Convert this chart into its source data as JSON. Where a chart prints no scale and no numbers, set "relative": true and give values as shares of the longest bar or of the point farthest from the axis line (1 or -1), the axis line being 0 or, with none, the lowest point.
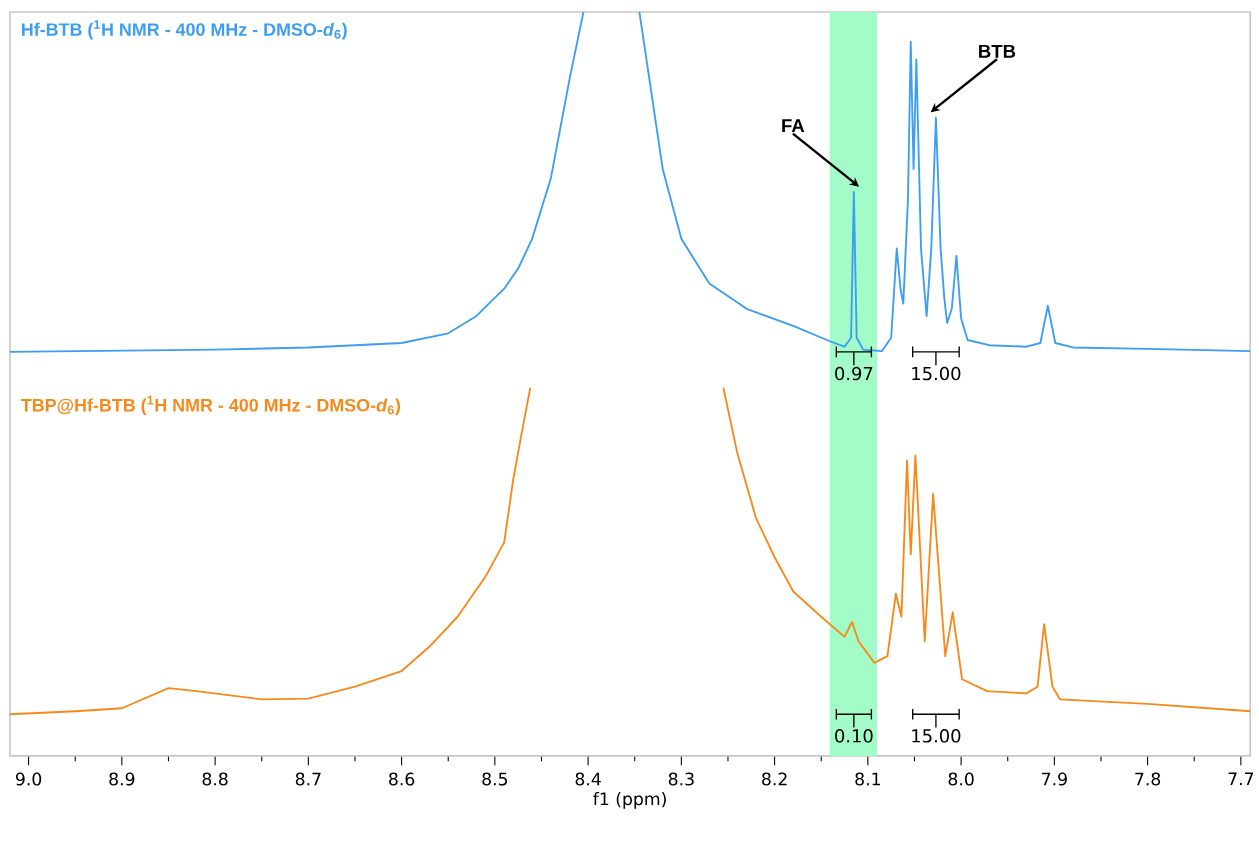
{
  "chart_data": {
    "type": "line",
    "relative": true,
    "xlabel": "f1 (ppm)",
    "xlim": [
      9.02,
      7.69
    ],
    "xticks": [
      {
        "value": 9,
        "label": "9.0"
      },
      8.9,
      8.8,
      8.7,
      8.6,
      8.5,
      8.4,
      8.3,
      8.2,
      8.1,
      {
        "value": 8,
        "label": "8.0"
      },
      7.9,
      7.8,
      7.7
    ],
    "series": [
      {
        "name": "Hf-BTB ($^{1}$H NMR - 400 MHz - DMSO-*d*$_{6}$)",
        "color": "#3c9ef2",
        "x": [
          9.02,
          8.8,
          8.7,
          8.6,
          8.55,
          8.52,
          8.49,
          8.475,
          8.46,
          8.44,
          8.42,
          8.405,
          8.375,
          8.345,
          8.32,
          8.3,
          8.27,
          8.23,
          8.18,
          8.14,
          8.125,
          8.118,
          8.115,
          8.112,
          8.105,
          8.085,
          8.075,
          8.069,
          8.065,
          8.062,
          8.057,
          8.054,
          8.051,
          8.048,
          8.043,
          8.037,
          8.032,
          8.027,
          8.022,
          8.018,
          8.015,
          8.01,
          8.005,
          8.0,
          7.993,
          7.97,
          7.93,
          7.915,
          7.907,
          7.899,
          7.88,
          7.8,
          7.69
        ],
        "values": [
          0.543,
          0.546,
          0.549,
          0.555,
          0.568,
          0.591,
          0.628,
          0.655,
          0.695,
          0.776,
          0.909,
          1,
          null,
          1,
          0.789,
          0.695,
          0.635,
          0.601,
          0.578,
          0.557,
          0.55,
          0.562,
          0.758,
          0.562,
          0.546,
          0.544,
          0.562,
          0.682,
          0.628,
          0.608,
          0.748,
          0.96,
          0.789,
          0.936,
          0.682,
          0.591,
          0.682,
          0.858,
          0.682,
          0.615,
          0.582,
          0.601,
          0.672,
          0.588,
          0.559,
          0.552,
          0.55,
          0.555,
          0.605,
          0.555,
          0.549,
          0.547,
          0.544
        ]
      },
      {
        "name": "TBP@Hf-BTB ($^{1}$H NMR - 400 MHz - DMSO-*d*$_{6}$)",
        "color": "#f7891a",
        "x": [
          9.02,
          8.95,
          8.9,
          8.85,
          8.82,
          8.75,
          8.7,
          8.65,
          8.6,
          8.57,
          8.54,
          8.51,
          8.49,
          8.48,
          8.47,
          8.462,
          8.36,
          8.255,
          8.24,
          8.22,
          8.2,
          8.18,
          8.15,
          8.125,
          8.117,
          8.11,
          8.093,
          8.079,
          8.07,
          8.064,
          8.058,
          8.054,
          8.049,
          8.039,
          8.03,
          8.017,
          8.009,
          7.999,
          7.972,
          7.93,
          7.918,
          7.911,
          7.902,
          7.894,
          7.8,
          7.69
        ],
        "values": [
          0.056,
          0.06,
          0.064,
          0.091,
          0.087,
          0.076,
          0.077,
          0.093,
          0.114,
          0.147,
          0.187,
          0.241,
          0.287,
          0.374,
          0.442,
          0.495,
          null,
          0.495,
          0.407,
          0.32,
          0.267,
          0.221,
          0.187,
          0.16,
          0.18,
          0.154,
          0.125,
          0.134,
          0.218,
          0.187,
          0.397,
          0.271,
          0.404,
          0.154,
          0.352,
          0.134,
          0.193,
          0.103,
          0.087,
          0.084,
          0.093,
          0.177,
          0.093,
          0.076,
          0.07,
          0.06
        ]
      }
    ],
    "bands": [
      {
        "axis": "x",
        "from": 8.141,
        "to": 8.09,
        "color": "#a3fbc8"
      }
    ],
    "annotations": [
      {
        "text": "FA",
        "x": 8.115,
        "y": 0.758
      },
      {
        "text": "BTB",
        "x": 8.027,
        "y": 0.858
      },
      "0.97",
      "15.00",
      "0.10",
      "15.00"
    ]
  }
}
